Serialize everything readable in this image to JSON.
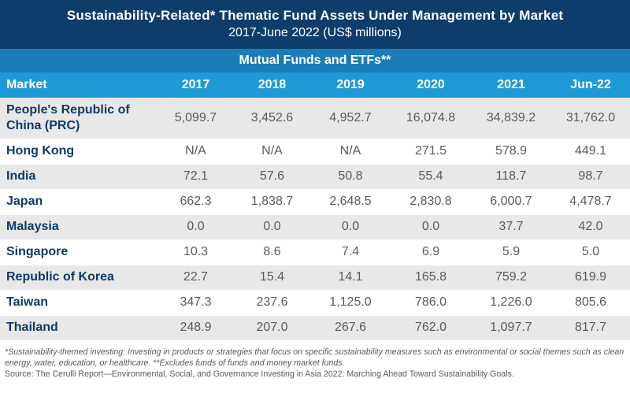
{
  "header": {
    "title": "Sustainability-Related* Thematic Fund Assets Under Management by Market",
    "subtitle": "2017-June 2022 (US$ millions)",
    "band": "Mutual Funds and ETFs**"
  },
  "chart_data": {
    "type": "table",
    "title": "Sustainability-Related* Thematic Fund Assets Under Management by Market",
    "subtitle": "2017-June 2022 (US$ millions)",
    "columns": [
      "Market",
      "2017",
      "2018",
      "2019",
      "2020",
      "2021",
      "Jun-22"
    ],
    "rows": [
      {
        "market": "People's Republic of China (PRC)",
        "values": [
          "5,099.7",
          "3,452.6",
          "4,952.7",
          "16,074.8",
          "34,839.2",
          "31,762.0"
        ]
      },
      {
        "market": "Hong Kong",
        "values": [
          "N/A",
          "N/A",
          "N/A",
          "271.5",
          "578.9",
          "449.1"
        ]
      },
      {
        "market": "India",
        "values": [
          "72.1",
          "57.6",
          "50.8",
          "55.4",
          "118.7",
          "98.7"
        ]
      },
      {
        "market": "Japan",
        "values": [
          "662.3",
          "1,838.7",
          "2,648.5",
          "2,830.8",
          "6,000.7",
          "4,478.7"
        ]
      },
      {
        "market": "Malaysia",
        "values": [
          "0.0",
          "0.0",
          "0.0",
          "0.0",
          "37.7",
          "42.0"
        ]
      },
      {
        "market": "Singapore",
        "values": [
          "10.3",
          "8.6",
          "7.4",
          "6.9",
          "5.9",
          "5.0"
        ]
      },
      {
        "market": "Republic of Korea",
        "values": [
          "22.7",
          "15.4",
          "14.1",
          "165.8",
          "759.2",
          "619.9"
        ]
      },
      {
        "market": "Taiwan",
        "values": [
          "347.3",
          "237.6",
          "1,125.0",
          "786.0",
          "1,226.0",
          "805.6"
        ]
      },
      {
        "market": "Thailand",
        "values": [
          "248.9",
          "207.0",
          "267.6",
          "762.0",
          "1,097.7",
          "817.7"
        ]
      }
    ]
  },
  "footnote": {
    "note": "*Sustainability-themed investing: Investing in products or strategies that focus on specific sustainability measures such as environmental or social themes such as clean energy, water, education, or healthcare. **Excludes funds of funds and money market funds.",
    "source": "Source: The Cerulli Report—Environmental, Social, and Governance Investing in Asia 2022: Marching Ahead Toward Sustainability Goals."
  }
}
